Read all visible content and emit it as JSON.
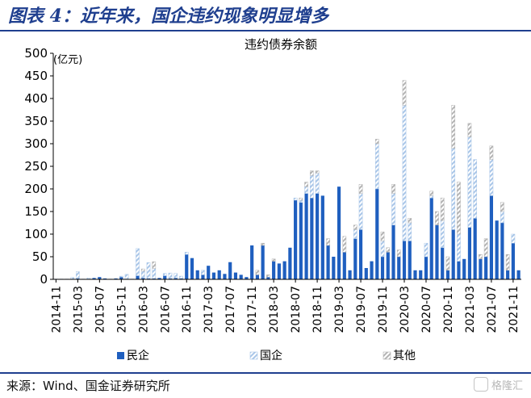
{
  "figure": {
    "title": "图表 4：近年来，国企违约现象明显增多",
    "source": "来源：Wind、国金证券研究所",
    "watermark": "格隆汇"
  },
  "colors": {
    "brand": "#1f3f8f",
    "private": "#1f5fbf",
    "soe": "#a9c6e8",
    "other": "#b3b3b3"
  },
  "chart_data": {
    "type": "bar",
    "stacked": true,
    "title": "违约债券余额",
    "ylabel": "(亿元)",
    "xlabel": "",
    "ylim": [
      0,
      500
    ],
    "yticks": [
      0,
      50,
      100,
      150,
      200,
      250,
      300,
      350,
      400,
      450,
      500
    ],
    "grid": false,
    "legend_position": "bottom",
    "categories": [
      "2014-11",
      "2014-12",
      "2015-01",
      "2015-02",
      "2015-03",
      "2015-04",
      "2015-05",
      "2015-06",
      "2015-07",
      "2015-08",
      "2015-09",
      "2015-10",
      "2015-11",
      "2015-12",
      "2016-01",
      "2016-02",
      "2016-03",
      "2016-04",
      "2016-05",
      "2016-06",
      "2016-07",
      "2016-08",
      "2016-09",
      "2016-10",
      "2016-11",
      "2016-12",
      "2017-01",
      "2017-02",
      "2017-03",
      "2017-04",
      "2017-05",
      "2017-06",
      "2017-07",
      "2017-08",
      "2017-09",
      "2017-10",
      "2017-11",
      "2017-12",
      "2018-01",
      "2018-02",
      "2018-03",
      "2018-04",
      "2018-05",
      "2018-06",
      "2018-07",
      "2018-08",
      "2018-09",
      "2018-10",
      "2018-11",
      "2018-12",
      "2019-01",
      "2019-02",
      "2019-03",
      "2019-04",
      "2019-05",
      "2019-06",
      "2019-07",
      "2019-08",
      "2019-09",
      "2019-10",
      "2019-11",
      "2019-12",
      "2020-01",
      "2020-02",
      "2020-03",
      "2020-04",
      "2020-05",
      "2020-06",
      "2020-07",
      "2020-08",
      "2020-09",
      "2020-10",
      "2020-11",
      "2020-12",
      "2021-01",
      "2021-02",
      "2021-03",
      "2021-04",
      "2021-05",
      "2021-06",
      "2021-07",
      "2021-08",
      "2021-09",
      "2021-10",
      "2021-11",
      "2021-12"
    ],
    "tick_labels": [
      "2014-11",
      "2015-03",
      "2015-07",
      "2015-11",
      "2016-03",
      "2016-07",
      "2016-11",
      "2017-03",
      "2017-07",
      "2017-11",
      "2018-03",
      "2018-07",
      "2018-11",
      "2019-03",
      "2019-07",
      "2019-11",
      "2020-03",
      "2020-07",
      "2020-11",
      "2021-03",
      "2021-07",
      "2021-11"
    ],
    "series": [
      {
        "name": "民企",
        "values": [
          1,
          1,
          1,
          1,
          2,
          1,
          1,
          3,
          5,
          2,
          1,
          2,
          5,
          1,
          1,
          8,
          3,
          2,
          2,
          3,
          8,
          2,
          3,
          2,
          55,
          47,
          20,
          10,
          30,
          15,
          20,
          12,
          38,
          15,
          10,
          5,
          75,
          10,
          75,
          5,
          40,
          35,
          40,
          70,
          175,
          170,
          190,
          180,
          190,
          185,
          75,
          50,
          205,
          60,
          20,
          90,
          110,
          25,
          40,
          200,
          50,
          60,
          120,
          50,
          85,
          85,
          20,
          20,
          50,
          180,
          120,
          70,
          20,
          110,
          40,
          45,
          115,
          135,
          45,
          50,
          185,
          130,
          125,
          20,
          80,
          20
        ]
      },
      {
        "name": "国企",
        "values": [
          0,
          0,
          0,
          3,
          15,
          0,
          2,
          0,
          0,
          0,
          0,
          0,
          2,
          10,
          0,
          60,
          15,
          35,
          22,
          0,
          5,
          12,
          10,
          5,
          5,
          0,
          0,
          10,
          0,
          0,
          0,
          0,
          0,
          0,
          0,
          0,
          0,
          0,
          0,
          0,
          0,
          0,
          0,
          0,
          5,
          5,
          15,
          50,
          45,
          0,
          0,
          0,
          0,
          0,
          0,
          20,
          80,
          0,
          0,
          100,
          35,
          0,
          70,
          0,
          300,
          40,
          0,
          0,
          30,
          5,
          0,
          60,
          0,
          180,
          60,
          0,
          200,
          130,
          0,
          0,
          80,
          0,
          25,
          0,
          20,
          0
        ]
      },
      {
        "name": "其他",
        "values": [
          0,
          0,
          0,
          0,
          0,
          0,
          0,
          0,
          0,
          0,
          0,
          0,
          0,
          0,
          0,
          0,
          5,
          0,
          15,
          0,
          0,
          0,
          0,
          0,
          0,
          0,
          0,
          0,
          0,
          0,
          0,
          0,
          0,
          0,
          0,
          0,
          0,
          10,
          5,
          5,
          5,
          0,
          0,
          0,
          0,
          5,
          10,
          10,
          5,
          0,
          15,
          0,
          0,
          35,
          0,
          10,
          20,
          0,
          0,
          10,
          20,
          10,
          20,
          15,
          55,
          10,
          0,
          0,
          0,
          10,
          30,
          50,
          30,
          95,
          115,
          0,
          30,
          0,
          10,
          40,
          30,
          0,
          20,
          35,
          0,
          0
        ]
      }
    ],
    "legend": [
      "民企",
      "国企",
      "其他"
    ]
  }
}
